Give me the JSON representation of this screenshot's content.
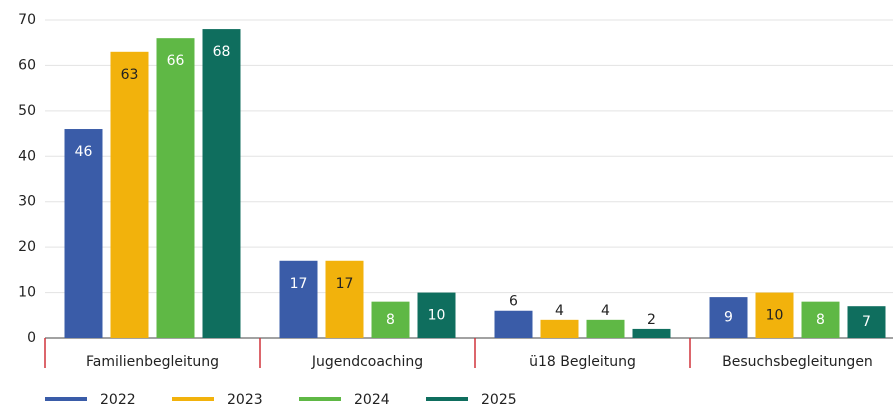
{
  "chart_data": {
    "type": "bar",
    "categories": [
      "Familienbegleitung",
      "Jugendcoaching",
      "ü18 Begleitung",
      "Besuchsbegleitungen"
    ],
    "series": [
      {
        "name": "2022",
        "color": "#3a5ca8",
        "values": [
          46,
          17,
          6,
          9
        ]
      },
      {
        "name": "2023",
        "color": "#f2b20c",
        "values": [
          63,
          17,
          4,
          10
        ]
      },
      {
        "name": "2024",
        "color": "#5fb845",
        "values": [
          66,
          8,
          4,
          8
        ]
      },
      {
        "name": "2025",
        "color": "#0f6e5e",
        "values": [
          68,
          10,
          2,
          7
        ]
      }
    ],
    "ylim": [
      0,
      70
    ],
    "yticks": [
      0,
      10,
      20,
      30,
      40,
      50,
      60,
      70
    ],
    "grid": true,
    "legend": "bottom"
  }
}
